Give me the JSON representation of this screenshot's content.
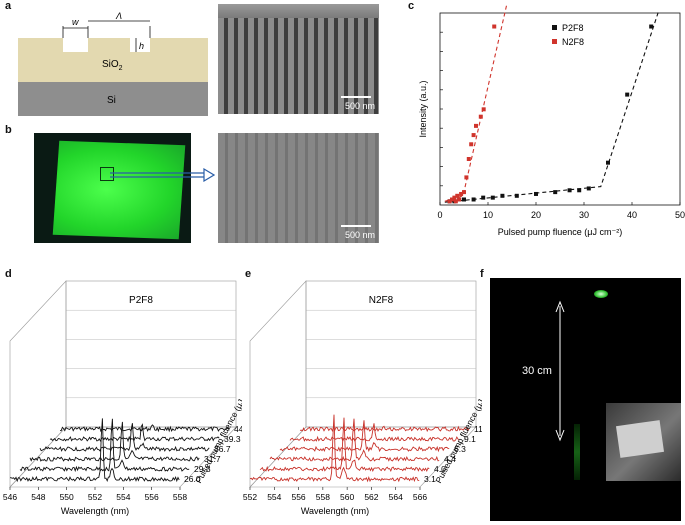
{
  "panels": {
    "a": {
      "letter": "a",
      "labels": {
        "w": "w",
        "lambda": "Λ",
        "h": "h",
        "sio2": "SiO",
        "sio2_sub": "2",
        "si": "Si"
      },
      "sem_scalebar": "500 nm"
    },
    "b": {
      "letter": "b",
      "sem_scalebar": "500 nm"
    },
    "c": {
      "letter": "c",
      "colors": {
        "P2F8": "#111111",
        "N2F8": "#d0342c"
      },
      "chart_data": {
        "type": "scatter",
        "xlabel": "Pulsed pump fluence (μJ cm⁻²)",
        "ylabel": "Intensity (a.u.)",
        "xlim": [
          0,
          50
        ],
        "xticks": [
          "0",
          "10",
          "20",
          "30",
          "40",
          "50"
        ],
        "legend": "top-right",
        "series": [
          {
            "name": "P2F8",
            "x": [
              2,
              3,
              4,
              5,
              7,
              9,
              11,
              13,
              16,
              20,
              24,
              27,
              29,
              31,
              35,
              39,
              44
            ],
            "y": [
              0.02,
              0.02,
              0.03,
              0.03,
              0.03,
              0.04,
              0.04,
              0.05,
              0.05,
              0.06,
              0.07,
              0.08,
              0.08,
              0.09,
              0.23,
              0.6,
              0.97
            ]
          },
          {
            "name": "N2F8",
            "x": [
              2,
              2.5,
              3,
              3.3,
              3.6,
              4,
              4.4,
              5,
              5.5,
              6,
              6.5,
              7,
              7.5,
              8.5,
              9.1,
              11.3
            ],
            "y": [
              0.02,
              0.03,
              0.04,
              0.02,
              0.05,
              0.03,
              0.06,
              0.07,
              0.15,
              0.25,
              0.33,
              0.38,
              0.43,
              0.48,
              0.52,
              0.97
            ]
          }
        ]
      }
    },
    "d": {
      "letter": "d",
      "title": "P2F8",
      "chart_data": {
        "type": "line",
        "xlabel": "Wavelength (nm)",
        "ylabel": "Intensity (a.u.)",
        "zlabel": "Pulsed pump fluence (μJ cm⁻²)",
        "xticks": [
          "546",
          "548",
          "550",
          "552",
          "554",
          "556",
          "558"
        ],
        "fluences": [
          "26.0",
          "29.3",
          "31.7",
          "36.7",
          "39.3",
          "44.0"
        ],
        "peak_wavelength": 552.5,
        "line_color": "#111111"
      }
    },
    "e": {
      "letter": "e",
      "title": "N2F8",
      "chart_data": {
        "type": "line",
        "xlabel": "Wavelength (nm)",
        "ylabel": "Intensity (a.u.)",
        "zlabel": "Pulsed pump fluence (μJ cm⁻²)",
        "xticks": [
          "552",
          "554",
          "556",
          "558",
          "560",
          "562",
          "564",
          "566"
        ],
        "fluences": [
          "3.1",
          "4.0",
          "4.4",
          "6.3",
          "9.1",
          "11.3"
        ],
        "peak_wavelength": 558.9,
        "line_color": "#c8322a"
      }
    },
    "f": {
      "letter": "f",
      "distance_label": "30 cm"
    }
  }
}
